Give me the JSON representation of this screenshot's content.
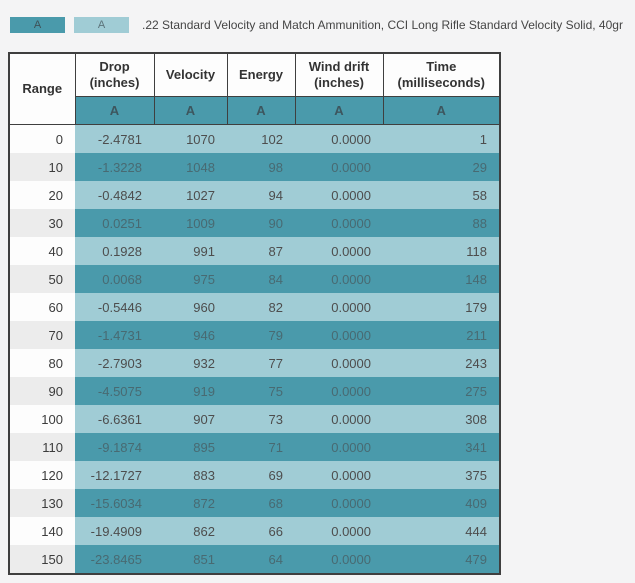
{
  "page": {
    "background": "#f4f4f5"
  },
  "legend": {
    "swatches": [
      {
        "label": "A",
        "color": "#4a9aab"
      },
      {
        "label": "A",
        "color": "#a0ccd5"
      }
    ],
    "text": ".22 Standard Velocity and Match Ammunition, CCI Long Rifle Standard Velocity Solid, 40gr"
  },
  "colors": {
    "series_a_dark": "#4a9aab",
    "series_a_light": "#a0ccd5",
    "row_alt_gray": "#ececec",
    "table_border": "#3f3f3f"
  },
  "chart_data": {
    "type": "table",
    "title": "",
    "legend_entries": [
      {
        "key": "A",
        "description": ".22 Standard Velocity and Match Ammunition, CCI Long Rifle Standard Velocity Solid, 40gr"
      }
    ],
    "columns": [
      "Range",
      "Drop (inches)",
      "Velocity",
      "Energy",
      "Wind drift (inches)",
      "Time (milliseconds)"
    ],
    "headers_display": [
      "Range",
      "Drop\n(inches)",
      "Velocity",
      "Energy",
      "Wind drift\n(inches)",
      "Time\n(milliseconds)"
    ],
    "series_label": "A",
    "rows": [
      [
        "0",
        "-2.4781",
        "1070",
        "102",
        "0.0000",
        "1"
      ],
      [
        "10",
        "-1.3228",
        "1048",
        "98",
        "0.0000",
        "29"
      ],
      [
        "20",
        "-0.4842",
        "1027",
        "94",
        "0.0000",
        "58"
      ],
      [
        "30",
        "0.0251",
        "1009",
        "90",
        "0.0000",
        "88"
      ],
      [
        "40",
        "0.1928",
        "991",
        "87",
        "0.0000",
        "118"
      ],
      [
        "50",
        "0.0068",
        "975",
        "84",
        "0.0000",
        "148"
      ],
      [
        "60",
        "-0.5446",
        "960",
        "82",
        "0.0000",
        "179"
      ],
      [
        "70",
        "-1.4731",
        "946",
        "79",
        "0.0000",
        "211"
      ],
      [
        "80",
        "-2.7903",
        "932",
        "77",
        "0.0000",
        "243"
      ],
      [
        "90",
        "-4.5075",
        "919",
        "75",
        "0.0000",
        "275"
      ],
      [
        "100",
        "-6.6361",
        "907",
        "73",
        "0.0000",
        "308"
      ],
      [
        "110",
        "-9.1874",
        "895",
        "71",
        "0.0000",
        "341"
      ],
      [
        "120",
        "-12.1727",
        "883",
        "69",
        "0.0000",
        "375"
      ],
      [
        "130",
        "-15.6034",
        "872",
        "68",
        "0.0000",
        "409"
      ],
      [
        "140",
        "-19.4909",
        "862",
        "66",
        "0.0000",
        "444"
      ],
      [
        "150",
        "-23.8465",
        "851",
        "64",
        "0.0000",
        "479"
      ]
    ]
  }
}
